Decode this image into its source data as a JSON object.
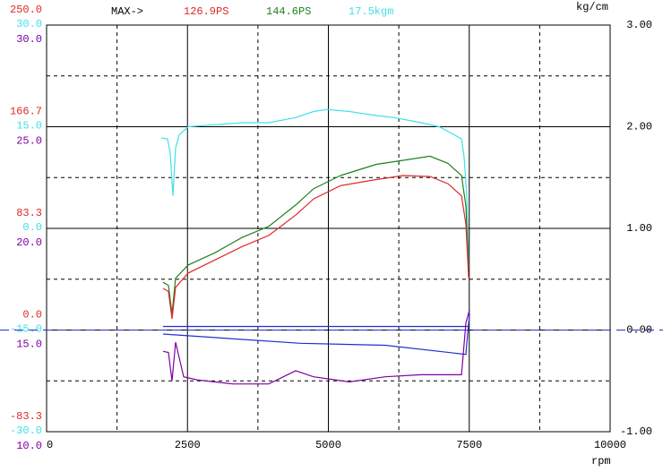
{
  "chart_data": {
    "type": "line",
    "header_label": "MAX->",
    "max_labels": [
      {
        "text": "126.9PS",
        "color": "#e02828"
      },
      {
        "text": "144.6PS",
        "color": "#208020"
      },
      {
        "text": "17.5kgm",
        "color": "#40e0e8"
      }
    ],
    "y2_unit_label": "kg/cm",
    "x_unit_label": "rpm",
    "xlim": [
      0,
      10000
    ],
    "xticks": [
      0,
      2500,
      5000,
      7500,
      10000
    ],
    "x_minor_grid": [
      1250,
      3750,
      6250,
      8750
    ],
    "y2lim": [
      -1,
      3
    ],
    "y2ticks": [
      {
        "value": 3,
        "label": "3.00"
      },
      {
        "value": 2,
        "label": "2.00"
      },
      {
        "value": 1,
        "label": "1.00"
      },
      {
        "value": 0,
        "label": "0.00"
      },
      {
        "value": -1,
        "label": "-1.00"
      }
    ],
    "y2_minor_grid": [
      2.5,
      1.5,
      0.5,
      -0.5
    ],
    "left_axes": [
      {
        "color": "#e02828",
        "lim": [
          -83.3,
          250
        ],
        "ticks": [
          {
            "value": 250,
            "label": "250.0"
          },
          {
            "value": 166.7,
            "label": "166.7"
          },
          {
            "value": 83.3,
            "label": "83.3"
          },
          {
            "value": 0,
            "label": "0.0"
          },
          {
            "value": -83.3,
            "label": "-83.3"
          }
        ]
      },
      {
        "color": "#40e0e8",
        "lim": [
          -30,
          30
        ],
        "ticks": [
          {
            "value": 30,
            "label": "30.0"
          },
          {
            "value": 15,
            "label": "15.0"
          },
          {
            "value": 0,
            "label": "0.0"
          },
          {
            "value": -15,
            "label": "-15.0"
          },
          {
            "value": -30,
            "label": "-30.0"
          }
        ]
      },
      {
        "color": "#8000a0",
        "lim": [
          10,
          30
        ],
        "ticks": [
          {
            "value": 30,
            "label": "30.0"
          },
          {
            "value": 25,
            "label": "25.0"
          },
          {
            "value": 20,
            "label": "20.0"
          },
          {
            "value": 15,
            "label": "15.0"
          },
          {
            "value": 10,
            "label": "10.0"
          }
        ]
      }
    ],
    "reference_line": {
      "value": 0,
      "color": "#2030d0"
    },
    "series": [
      {
        "color": "#40e0e8",
        "x": [
          2035,
          2146,
          2194,
          2242,
          2290,
          2353,
          2512,
          2989,
          3466,
          3943,
          4420,
          4738,
          4977,
          5374,
          5851,
          6169,
          6646,
          6964,
          7203,
          7362,
          7409,
          7457,
          7489
        ],
        "values": [
          1.89,
          1.88,
          1.74,
          1.32,
          1.79,
          1.92,
          2.0,
          2.02,
          2.04,
          2.04,
          2.09,
          2.15,
          2.17,
          2.15,
          2.11,
          2.09,
          2.04,
          2.0,
          1.93,
          1.88,
          1.7,
          1.32,
          0.6
        ]
      },
      {
        "color": "#208020",
        "x": [
          2067,
          2162,
          2226,
          2290,
          2512,
          2989,
          3466,
          3943,
          4420,
          4738,
          5215,
          5851,
          6328,
          6805,
          7123,
          7362,
          7441,
          7489
        ],
        "values": [
          0.47,
          0.44,
          0.16,
          0.51,
          0.64,
          0.76,
          0.91,
          1.02,
          1.23,
          1.39,
          1.52,
          1.63,
          1.67,
          1.71,
          1.64,
          1.52,
          1.22,
          0.56
        ]
      },
      {
        "color": "#e02828",
        "x": [
          2067,
          2162,
          2226,
          2290,
          2512,
          2989,
          3466,
          3943,
          4420,
          4738,
          5215,
          5851,
          6328,
          6805,
          7123,
          7362,
          7441,
          7489
        ],
        "values": [
          0.41,
          0.38,
          0.11,
          0.42,
          0.56,
          0.69,
          0.82,
          0.93,
          1.13,
          1.29,
          1.42,
          1.48,
          1.52,
          1.51,
          1.44,
          1.32,
          1.04,
          0.51
        ]
      },
      {
        "color": "#2030d0",
        "x": [
          2067,
          7473
        ],
        "values": [
          0.035,
          0.035
        ]
      },
      {
        "color": "#2030d0",
        "x": [
          2067,
          4500,
          6010,
          7441,
          7473,
          7505
        ],
        "values": [
          -0.04,
          -0.13,
          -0.15,
          -0.24,
          -0.02,
          0.16
        ]
      },
      {
        "color": "#8000a0",
        "x": [
          2067,
          2162,
          2226,
          2290,
          2433,
          2671,
          3307,
          3943,
          4420,
          4738,
          5374,
          6010,
          6646,
          7362,
          7441,
          7505
        ],
        "values": [
          -0.21,
          -0.22,
          -0.5,
          -0.12,
          -0.46,
          -0.49,
          -0.53,
          -0.53,
          -0.4,
          -0.46,
          -0.51,
          -0.46,
          -0.44,
          -0.44,
          0.07,
          0.2
        ]
      }
    ]
  }
}
